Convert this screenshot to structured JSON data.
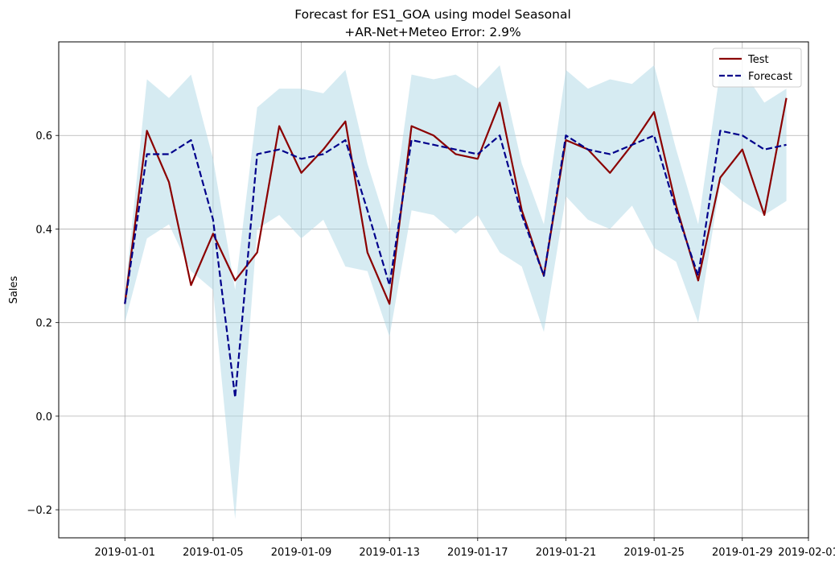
{
  "chart_data": {
    "type": "line",
    "title": "Forecast for ES1_GOA using model Seasonal\n+AR-Net+Meteo Error: 2.9%",
    "xlabel": "",
    "ylabel": "Sales",
    "x": [
      "2019-01-01",
      "2019-01-02",
      "2019-01-03",
      "2019-01-04",
      "2019-01-05",
      "2019-01-06",
      "2019-01-07",
      "2019-01-08",
      "2019-01-09",
      "2019-01-10",
      "2019-01-11",
      "2019-01-12",
      "2019-01-13",
      "2019-01-14",
      "2019-01-15",
      "2019-01-16",
      "2019-01-17",
      "2019-01-18",
      "2019-01-19",
      "2019-01-20",
      "2019-01-21",
      "2019-01-22",
      "2019-01-23",
      "2019-01-24",
      "2019-01-25",
      "2019-01-26",
      "2019-01-27",
      "2019-01-28",
      "2019-01-29",
      "2019-01-30",
      "2019-01-31"
    ],
    "series": [
      {
        "name": "Test",
        "style": "solid",
        "color": "#8b0000",
        "values": [
          0.24,
          0.61,
          0.5,
          0.28,
          0.39,
          0.29,
          0.35,
          0.62,
          0.52,
          0.57,
          0.63,
          0.35,
          0.24,
          0.62,
          0.6,
          0.56,
          0.55,
          0.67,
          0.44,
          0.3,
          0.59,
          0.57,
          0.52,
          0.58,
          0.65,
          0.45,
          0.29,
          0.51,
          0.57,
          0.43,
          0.68
        ]
      },
      {
        "name": "Forecast",
        "style": "dashed",
        "color": "#00008b",
        "values": [
          0.24,
          0.56,
          0.56,
          0.59,
          0.42,
          0.04,
          0.56,
          0.57,
          0.55,
          0.56,
          0.59,
          0.44,
          0.28,
          0.59,
          0.58,
          0.57,
          0.56,
          0.6,
          0.43,
          0.3,
          0.6,
          0.57,
          0.56,
          0.58,
          0.6,
          0.44,
          0.3,
          0.61,
          0.6,
          0.57,
          0.58
        ]
      }
    ],
    "band": {
      "color": "#add8e6",
      "lower": [
        0.2,
        0.38,
        0.41,
        0.31,
        0.27,
        -0.22,
        0.4,
        0.43,
        0.38,
        0.42,
        0.32,
        0.31,
        0.17,
        0.44,
        0.43,
        0.39,
        0.43,
        0.35,
        0.32,
        0.18,
        0.47,
        0.42,
        0.4,
        0.45,
        0.36,
        0.33,
        0.2,
        0.5,
        0.46,
        0.43,
        0.46
      ],
      "upper": [
        0.26,
        0.72,
        0.68,
        0.73,
        0.55,
        0.27,
        0.66,
        0.7,
        0.7,
        0.69,
        0.74,
        0.54,
        0.39,
        0.73,
        0.72,
        0.73,
        0.7,
        0.75,
        0.54,
        0.41,
        0.74,
        0.7,
        0.72,
        0.71,
        0.75,
        0.57,
        0.41,
        0.74,
        0.74,
        0.67,
        0.7
      ]
    },
    "xticks": [
      "2019-01-01",
      "2019-01-05",
      "2019-01-09",
      "2019-01-13",
      "2019-01-17",
      "2019-01-21",
      "2019-01-25",
      "2019-01-29",
      "2019-02-01"
    ],
    "yticks": [
      "−0.2",
      "0.0",
      "0.2",
      "0.4",
      "0.6"
    ],
    "ytick_values": [
      -0.2,
      0.0,
      0.2,
      0.4,
      0.6
    ],
    "xlim": [
      "2018-12-29",
      "2019-02-01"
    ],
    "ylim": [
      -0.26,
      0.8
    ],
    "grid": true,
    "legend": "top-right"
  }
}
